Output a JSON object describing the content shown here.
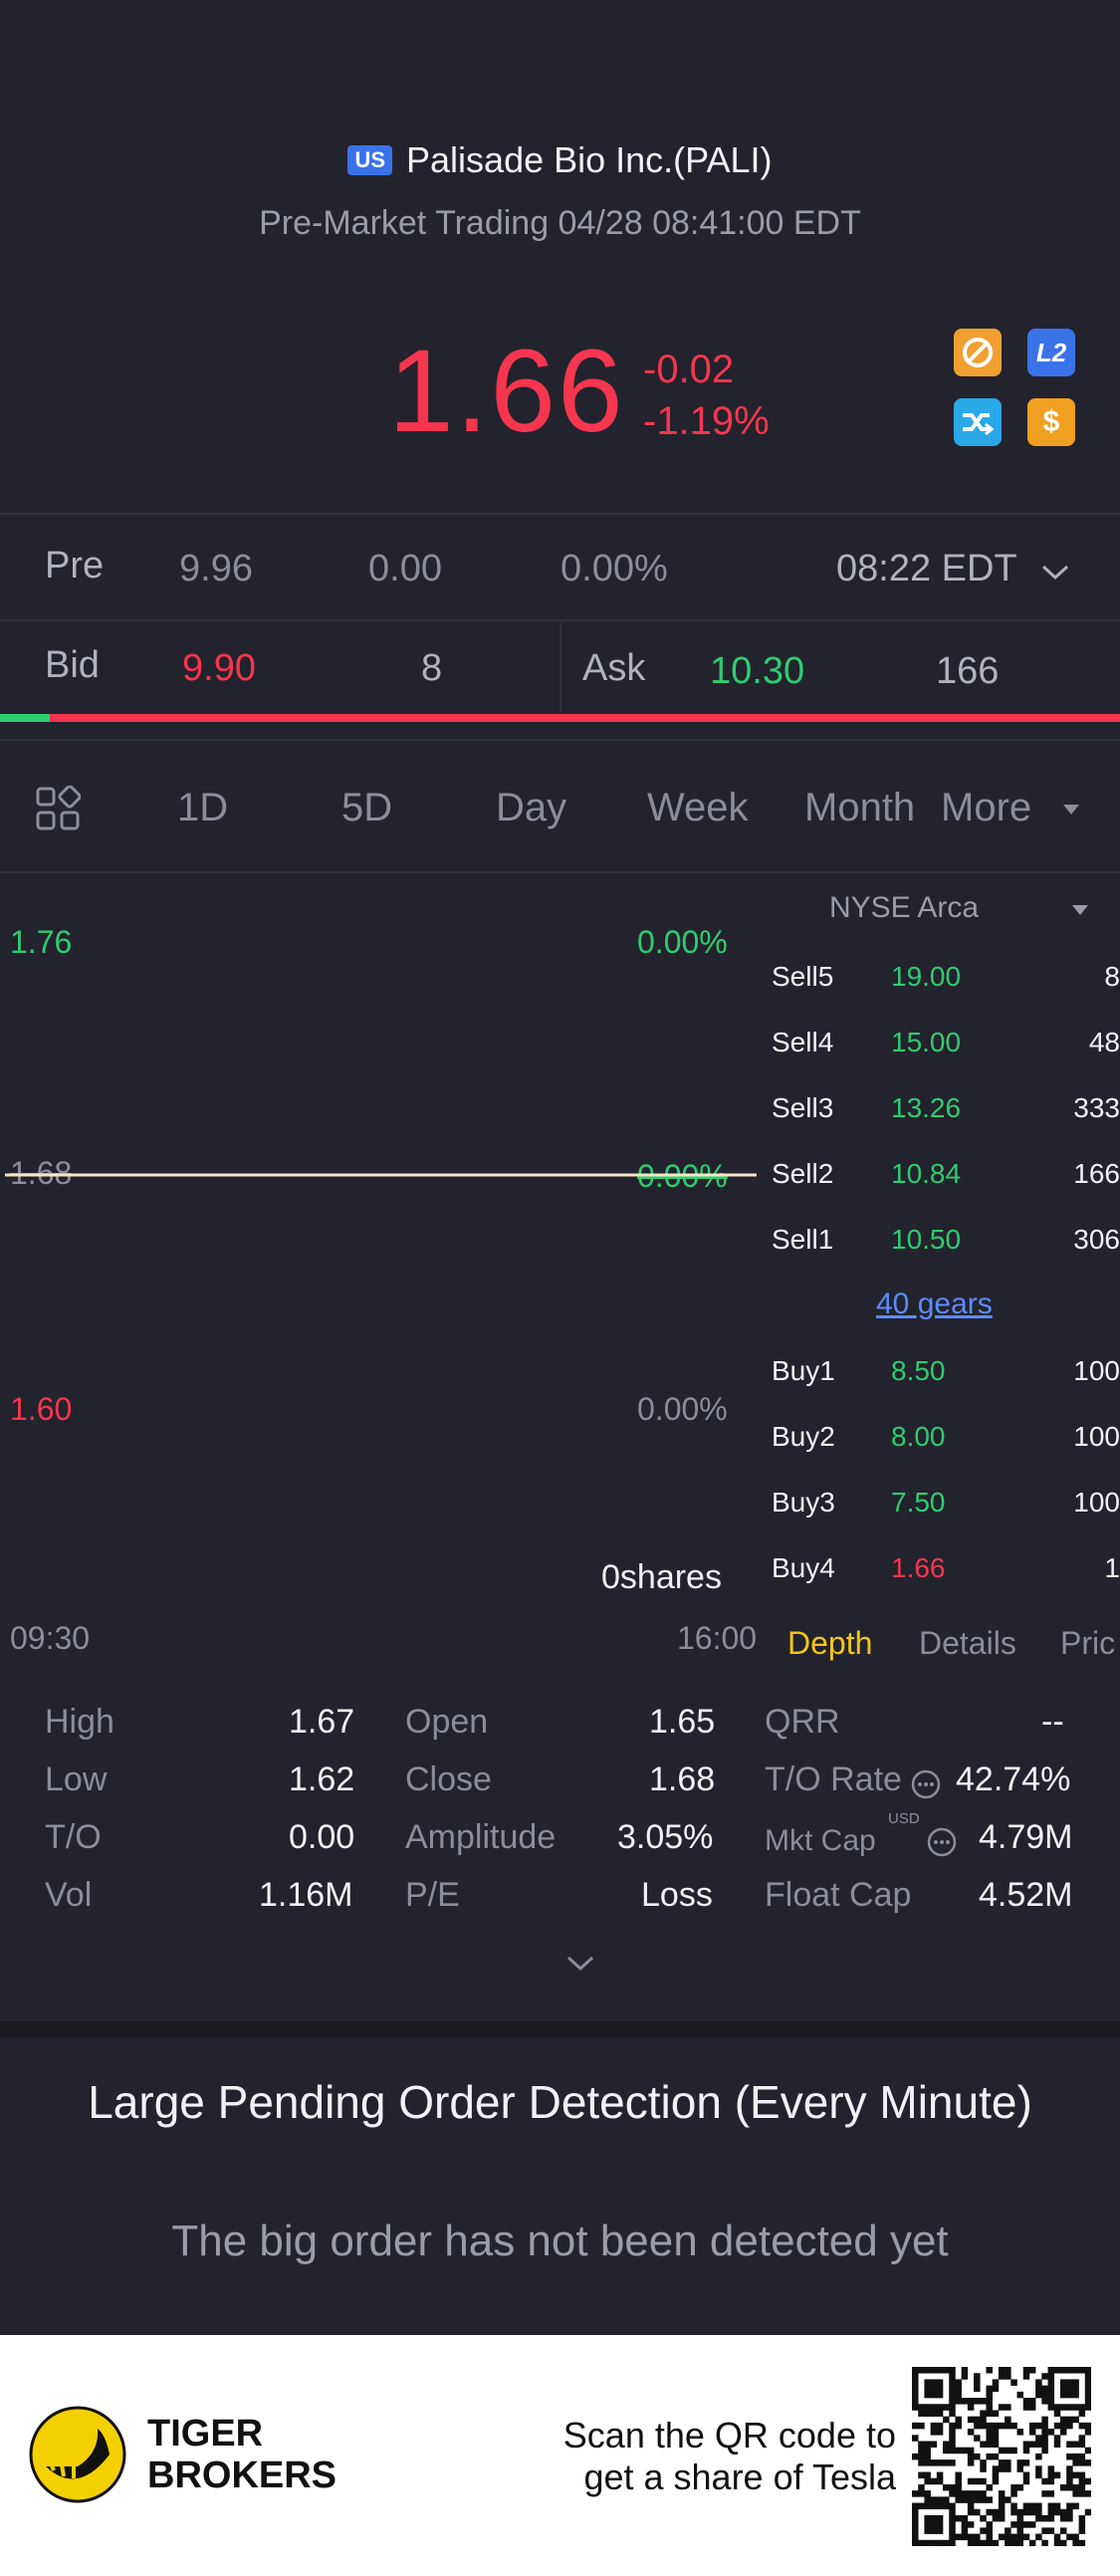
{
  "header": {
    "market_badge": "US",
    "title": "Palisade Bio Inc.(PALI)",
    "subtitle": "Pre-Market Trading 04/28 08:41:00 EDT",
    "price": "1.66",
    "change": "-0.02",
    "change_pct": "-1.19%",
    "icons": [
      "no-short-icon",
      "level2-icon",
      "share-arrow-icon",
      "dollar-icon"
    ],
    "level2_label": "L2"
  },
  "pre_row": {
    "label": "Pre",
    "price": "9.96",
    "change": "0.00",
    "change_pct": "0.00%",
    "time": "08:22 EDT"
  },
  "bid_ask": {
    "bid_label": "Bid",
    "bid_price": "9.90",
    "bid_size": "8",
    "ask_label": "Ask",
    "ask_price": "10.30",
    "ask_size": "166",
    "bid_ratio": 0.044
  },
  "tabs": {
    "items": [
      "1D",
      "5D",
      "Day",
      "Week",
      "Month",
      "More"
    ],
    "active": "1D"
  },
  "chart": {
    "y_top": "1.76",
    "y_mid": "1.68",
    "y_bottom": "1.60",
    "pct_top": "0.00%",
    "pct_mid": "0.00%",
    "pct_bottom": "0.00%",
    "volume": "0shares",
    "x_start": "09:30",
    "x_end": "16:00"
  },
  "chart_data": {
    "type": "line",
    "x": [
      "09:30",
      "16:00"
    ],
    "series": [
      {
        "values": [
          1.68,
          1.68
        ]
      }
    ],
    "ylim": [
      1.6,
      1.76
    ],
    "title": "",
    "xlabel": "",
    "ylabel": ""
  },
  "book": {
    "exchange": "NYSE Arca",
    "sells": [
      {
        "label": "Sell5",
        "price": "19.00",
        "size": "8"
      },
      {
        "label": "Sell4",
        "price": "15.00",
        "size": "48"
      },
      {
        "label": "Sell3",
        "price": "13.26",
        "size": "333"
      },
      {
        "label": "Sell2",
        "price": "10.84",
        "size": "166"
      },
      {
        "label": "Sell1",
        "price": "10.50",
        "size": "306"
      }
    ],
    "gears_link": "40 gears",
    "buys": [
      {
        "label": "Buy1",
        "price": "8.50",
        "size": "100"
      },
      {
        "label": "Buy2",
        "price": "8.00",
        "size": "100"
      },
      {
        "label": "Buy3",
        "price": "7.50",
        "size": "100"
      },
      {
        "label": "Buy4",
        "price": "1.66",
        "size": "1"
      }
    ],
    "tabs": [
      "Depth",
      "Details",
      "Pric"
    ]
  },
  "stats": {
    "col1": [
      {
        "label": "High",
        "value": "1.67"
      },
      {
        "label": "Low",
        "value": "1.62"
      },
      {
        "label": "T/O",
        "value": "0.00"
      },
      {
        "label": "Vol",
        "value": "1.16M"
      }
    ],
    "col2": [
      {
        "label": "Open",
        "value": "1.65"
      },
      {
        "label": "Close",
        "value": "1.68"
      },
      {
        "label": "Amplitude",
        "value": "3.05%"
      },
      {
        "label": "P/E",
        "value": "Loss"
      }
    ],
    "col3": [
      {
        "label": "QRR",
        "value": "--"
      },
      {
        "label": "T/O Rate",
        "value": "42.74%"
      },
      {
        "label": "Mkt Cap",
        "value": "4.79M",
        "unit": "USD"
      },
      {
        "label": "Float Cap",
        "value": "4.52M"
      }
    ]
  },
  "large_orders": {
    "title": "Large Pending Order Detection (Every Minute)",
    "empty_text": "The big order has not been detected yet"
  },
  "footer": {
    "brand_line1": "TIGER",
    "brand_line2": "BROKERS",
    "cta_line1": "Scan the QR code to",
    "cta_line2": "get a share of Tesla"
  },
  "colors": {
    "background": "#23232d",
    "down_red": "#f5364e",
    "up_green": "#2ecc71",
    "active_yellow": "#f5c518",
    "link_blue": "#5b8cff"
  }
}
